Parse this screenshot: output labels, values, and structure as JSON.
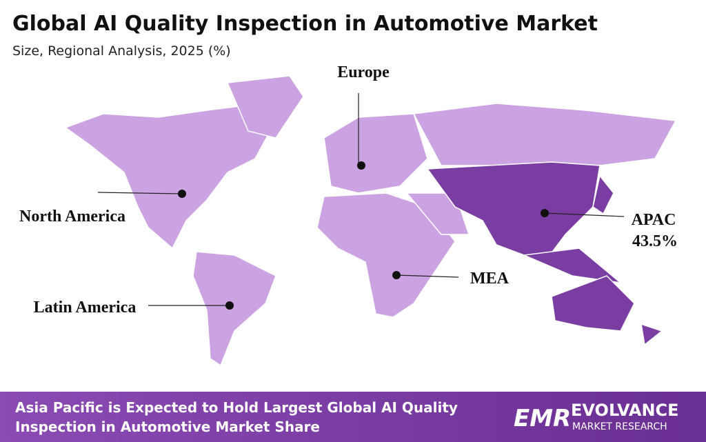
{
  "header": {
    "title": "Global AI Quality Inspection in Automotive Market",
    "subtitle": "Size, Regional Analysis, 2025 (%)"
  },
  "regions": [
    {
      "name": "Europe"
    },
    {
      "name": "North America"
    },
    {
      "name": "APAC",
      "share": "43.5%"
    },
    {
      "name": "MEA"
    },
    {
      "name": "Latin America"
    }
  ],
  "footer": {
    "lines": [
      "Asia Pacific is Expected to Hold Largest Global AI Quality",
      "Inspection in Automotive Market Share"
    ]
  },
  "logo": {
    "mark": "EMR",
    "name": "EVOLVANCE",
    "tagline": "MARKET RESEARCH"
  }
}
